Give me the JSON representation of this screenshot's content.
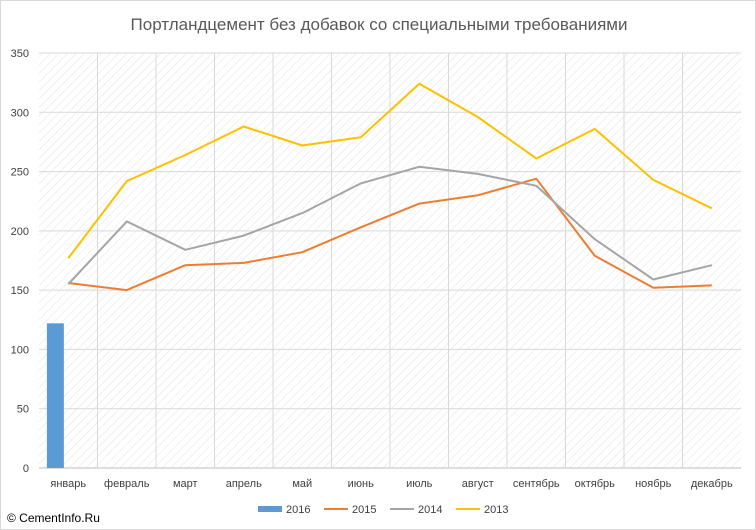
{
  "copyright": "© CementInfo.Ru",
  "chart_data": {
    "type": "line",
    "title": "Портландцемент без добавок со специальными требованиями",
    "xlabel": "",
    "ylabel": "",
    "ylim": [
      0,
      350
    ],
    "yticks": [
      0,
      50,
      100,
      150,
      200,
      250,
      300,
      350
    ],
    "grid": true,
    "legend": "bottom",
    "categories": [
      "январь",
      "февраль",
      "март",
      "апрель",
      "май",
      "июнь",
      "июль",
      "август",
      "сентябрь",
      "октябрь",
      "ноябрь",
      "декабрь"
    ],
    "series": [
      {
        "name": "2016",
        "type": "bar",
        "color": "#5b9bd5",
        "values": [
          122,
          null,
          null,
          null,
          null,
          null,
          null,
          null,
          null,
          null,
          null,
          null
        ]
      },
      {
        "name": "2015",
        "type": "line",
        "color": "#ed7d31",
        "values": [
          156,
          150,
          171,
          173,
          182,
          203,
          223,
          230,
          244,
          179,
          152,
          154
        ]
      },
      {
        "name": "2014",
        "type": "line",
        "color": "#a5a5a5",
        "values": [
          155,
          208,
          184,
          196,
          215,
          240,
          254,
          248,
          238,
          193,
          159,
          171
        ]
      },
      {
        "name": "2013",
        "type": "line",
        "color": "#ffc000",
        "values": [
          177,
          242,
          264,
          288,
          272,
          279,
          324,
          296,
          261,
          286,
          243,
          219
        ]
      }
    ]
  }
}
